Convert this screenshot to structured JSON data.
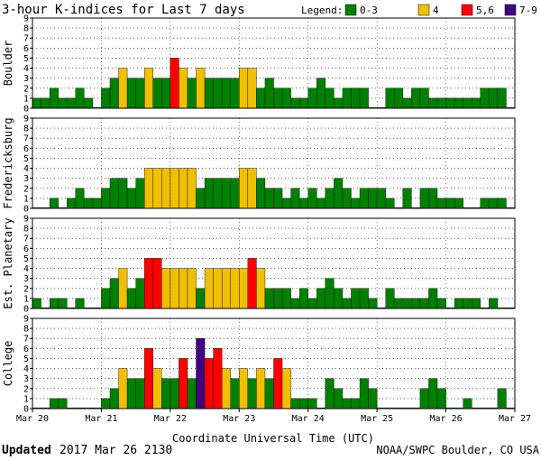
{
  "chart_data": {
    "type": "bar",
    "title": "3-hour K-indices for Last 7 days",
    "legend": {
      "title": "Legend:",
      "position": "top-right",
      "items": [
        {
          "label": "0-3",
          "color": "#008000"
        },
        {
          "label": "4",
          "color": "#f0c000"
        },
        {
          "label": "5,6",
          "color": "#ff0000"
        },
        {
          "label": "7-9",
          "color": "#400080"
        }
      ]
    },
    "xlabel": "Coordinate Universal Time (UTC)",
    "x_ticks": [
      "Mar 20",
      "Mar 21",
      "Mar 22",
      "Mar 23",
      "Mar 24",
      "Mar 25",
      "Mar 26",
      "Mar 27"
    ],
    "ylim": [
      0,
      9
    ],
    "y_ticks": [
      0,
      1,
      2,
      3,
      4,
      5,
      6,
      7,
      8,
      9
    ],
    "grid": "horizontal dotted",
    "bins_per_day": 8,
    "panels": [
      {
        "name": "Boulder",
        "values": [
          1,
          1,
          2,
          1,
          1,
          2,
          1,
          0,
          2,
          3,
          4,
          3,
          3,
          4,
          3,
          3,
          5,
          4,
          3,
          4,
          3,
          3,
          3,
          3,
          4,
          4,
          2,
          3,
          2,
          2,
          1,
          1,
          2,
          3,
          2,
          1,
          2,
          2,
          2,
          0,
          0,
          2,
          2,
          1,
          2,
          2,
          1,
          1,
          1,
          1,
          1,
          1,
          2,
          2,
          2,
          0
        ]
      },
      {
        "name": "Fredericksburg",
        "values": [
          0,
          0,
          1,
          0,
          1,
          2,
          1,
          1,
          2,
          3,
          3,
          2,
          3,
          4,
          4,
          4,
          4,
          4,
          4,
          2,
          3,
          3,
          3,
          3,
          4,
          4,
          3,
          2,
          2,
          1,
          2,
          1,
          2,
          1,
          2,
          3,
          2,
          1,
          2,
          2,
          2,
          1,
          0,
          2,
          0,
          2,
          2,
          1,
          1,
          1,
          0,
          0,
          1,
          1,
          1,
          0
        ]
      },
      {
        "name": "Est. Planetary",
        "values": [
          1,
          0,
          1,
          1,
          0,
          1,
          0,
          0,
          2,
          3,
          4,
          2,
          3,
          5,
          5,
          4,
          4,
          4,
          4,
          2,
          4,
          4,
          4,
          4,
          4,
          5,
          4,
          2,
          2,
          2,
          1,
          2,
          1,
          2,
          3,
          2,
          1,
          2,
          2,
          1,
          0,
          2,
          1,
          1,
          1,
          1,
          2,
          1,
          0,
          1,
          1,
          1,
          0,
          1,
          0,
          0
        ]
      },
      {
        "name": "College",
        "values": [
          0,
          0,
          1,
          1,
          0,
          0,
          0,
          0,
          1,
          2,
          4,
          3,
          3,
          6,
          4,
          3,
          3,
          5,
          3,
          7,
          5,
          6,
          4,
          3,
          4,
          3,
          4,
          3,
          5,
          4,
          1,
          1,
          1,
          0,
          3,
          2,
          1,
          1,
          3,
          2,
          0,
          0,
          0,
          0,
          0,
          2,
          3,
          2,
          0,
          0,
          1,
          0,
          0,
          0,
          2,
          0
        ]
      }
    ]
  },
  "footer": {
    "updated_label": "Updated",
    "updated_value": "2017 Mar 26 2130",
    "source": "NOAA/SWPC Boulder, CO USA"
  }
}
